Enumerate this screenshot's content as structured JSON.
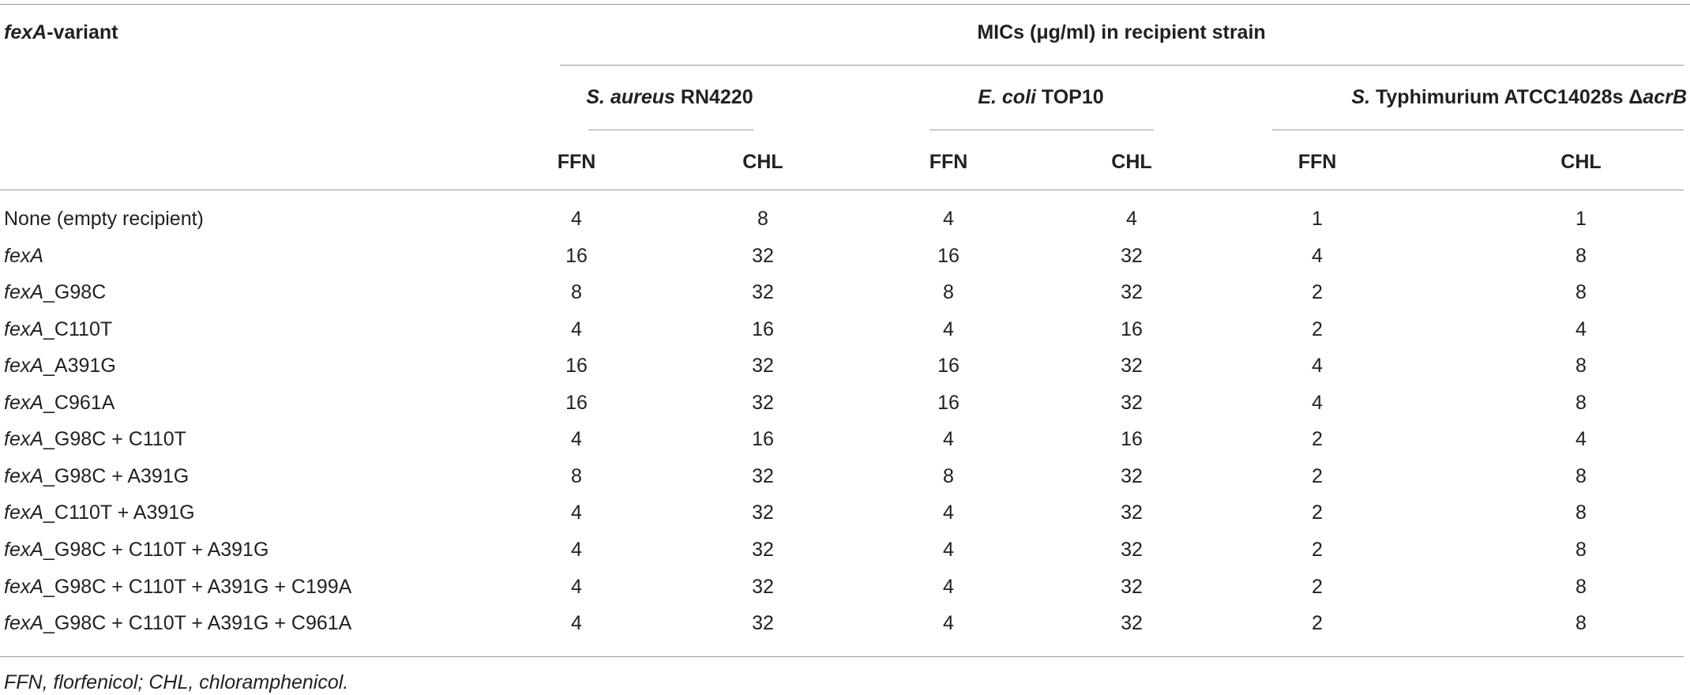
{
  "header": {
    "variant": {
      "gene": "fexA",
      "suffix": "-variant"
    },
    "mic": "MICs (μg/ml) in recipient strain",
    "strains": [
      {
        "species": "S. aureus",
        "strain": " RN4220"
      },
      {
        "species": "E. coli",
        "strain": " TOP10"
      },
      {
        "species": "S.",
        "strain": " Typhimurium ATCC14028s Δ",
        "gene": "acrB"
      }
    ],
    "columns": [
      "FFN",
      "CHL",
      "FFN",
      "CHL",
      "FFN",
      "CHL"
    ]
  },
  "table": {
    "rows": [
      {
        "name": "None (empty recipient)",
        "values": [
          4,
          8,
          4,
          4,
          1,
          1
        ]
      },
      {
        "gene": "fexA",
        "values": [
          16,
          32,
          16,
          32,
          4,
          8
        ]
      },
      {
        "gene": "fexA",
        "suffix": "_G98C",
        "values": [
          8,
          32,
          8,
          32,
          2,
          8
        ]
      },
      {
        "gene": "fexA",
        "suffix": "_C110T",
        "values": [
          4,
          16,
          4,
          16,
          2,
          4
        ]
      },
      {
        "gene": "fexA",
        "suffix": "_A391G",
        "values": [
          16,
          32,
          16,
          32,
          4,
          8
        ]
      },
      {
        "gene": "fexA",
        "suffix": "_C961A",
        "values": [
          16,
          32,
          16,
          32,
          4,
          8
        ]
      },
      {
        "gene": "fexA",
        "suffix": "_G98C + C110T",
        "values": [
          4,
          16,
          4,
          16,
          2,
          4
        ]
      },
      {
        "gene": "fexA",
        "suffix": "_G98C + A391G",
        "values": [
          8,
          32,
          8,
          32,
          2,
          8
        ]
      },
      {
        "gene": "fexA",
        "suffix": "_C110T + A391G",
        "values": [
          4,
          32,
          4,
          32,
          2,
          8
        ]
      },
      {
        "gene": "fexA",
        "suffix": "_G98C + C110T + A391G",
        "values": [
          4,
          32,
          4,
          32,
          2,
          8
        ]
      },
      {
        "gene": "fexA",
        "suffix": "_G98C + C110T + A391G + C199A",
        "values": [
          4,
          32,
          4,
          32,
          2,
          8
        ]
      },
      {
        "gene": "fexA",
        "suffix": "_G98C + C110T + A391G + C961A",
        "values": [
          4,
          32,
          4,
          32,
          2,
          8
        ]
      }
    ]
  },
  "footnote": "FFN, florfenicol; CHL, chloramphenicol."
}
